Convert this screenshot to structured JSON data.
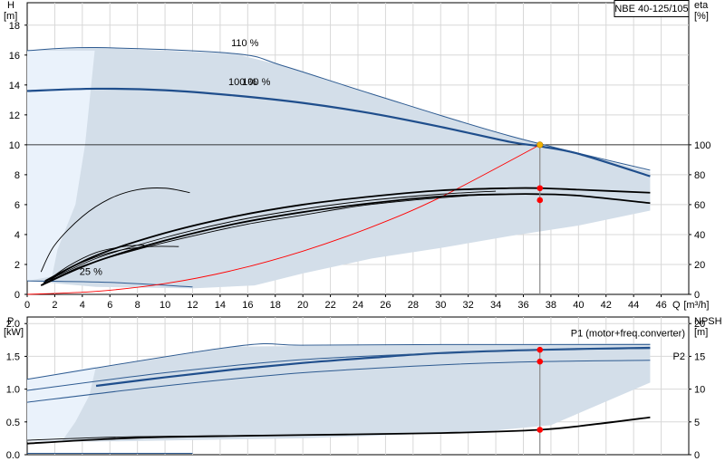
{
  "colors": {
    "envelope": "#d3dee9",
    "envelope_light": "#eaf2fb",
    "curve_blue": "#1f4e8c",
    "curve_thin_blue": "#2e5b91",
    "black": "#000000",
    "red": "#ff0000",
    "duty_point": "#f2b300"
  },
  "product_label": "NBE 40-125/105",
  "chart_data": [
    {
      "type": "line",
      "name": "head-efficiency",
      "y_left_label_top": "H",
      "y_left_label_unit": "[m]",
      "y_right_label_top": "eta",
      "y_right_label_unit": "[%]",
      "x_label_prefix": "Q",
      "x_label_unit": "[m³/h]",
      "x_ticks": [
        0,
        2,
        4,
        6,
        8,
        10,
        12,
        14,
        16,
        18,
        20,
        22,
        24,
        26,
        28,
        30,
        32,
        34,
        36,
        38,
        40,
        42,
        44,
        46
      ],
      "x_tick_labels": [
        "0",
        "2",
        "4",
        "6",
        "8",
        "10",
        "12",
        "14",
        "16",
        "18",
        "20",
        "22",
        "24",
        "26",
        "28",
        "30",
        "32",
        "34",
        "36",
        "38",
        "40",
        "42",
        "44",
        "46"
      ],
      "xlim": [
        0,
        48
      ],
      "y_left_ticks": [
        0,
        2,
        4,
        6,
        8,
        10,
        12,
        14,
        16,
        18
      ],
      "y_left_tick_labels": [
        "0",
        "2",
        "4",
        "6",
        "8",
        "10",
        "12",
        "14",
        "16",
        "18"
      ],
      "ylim_left": [
        0,
        19.5
      ],
      "y_right_ticks": [
        0,
        20,
        40,
        60,
        80,
        100
      ],
      "y_right_tick_labels": [
        "0",
        "20",
        "40",
        "60",
        "80",
        "100"
      ],
      "ylim_right": [
        0,
        195
      ],
      "annotations": [
        {
          "text": "110 %",
          "x": 14.8,
          "y": 16.6
        },
        {
          "text": "100 %",
          "x": 15.6,
          "y": 14.0
        },
        {
          "text": "100 %",
          "x": 14.6,
          "y": 14.0
        },
        {
          "text": "25 %",
          "x": 3.8,
          "y": 1.3
        }
      ],
      "envelope": {
        "upper": [
          [
            0,
            16.3
          ],
          [
            5,
            16.5
          ],
          [
            15,
            16.1
          ],
          [
            18.5,
            15.3
          ],
          [
            25,
            13.4
          ],
          [
            35,
            10.6
          ],
          [
            45.2,
            8.2
          ]
        ],
        "lower_right": [
          [
            45.2,
            8.2
          ],
          [
            45.2,
            5.6
          ],
          [
            40,
            4.6
          ],
          [
            35,
            3.9
          ],
          [
            30,
            3.1
          ],
          [
            25,
            2.4
          ],
          [
            20,
            1.4
          ],
          [
            16.5,
            0.6
          ],
          [
            12,
            0.4
          ],
          [
            5,
            0.5
          ],
          [
            0,
            0.9
          ]
        ]
      },
      "light_region": [
        [
          0,
          16.3
        ],
        [
          4.9,
          16.3
        ],
        [
          4.2,
          10
        ],
        [
          3.5,
          6
        ],
        [
          2.2,
          3
        ],
        [
          1.8,
          1.2
        ],
        [
          0,
          0.9
        ]
      ],
      "series": [
        {
          "name": "110 %",
          "style": "thin_blue",
          "x": [
            0,
            5,
            15,
            18.5,
            25,
            35,
            45.2
          ],
          "y": [
            16.3,
            16.5,
            16.1,
            15.3,
            13.4,
            10.6,
            8.3
          ]
        },
        {
          "name": "100 %",
          "style": "thick_blue",
          "x": [
            0,
            5,
            10,
            15,
            20,
            25,
            30,
            35,
            37.2,
            40,
            45.2
          ],
          "y": [
            13.6,
            13.75,
            13.65,
            13.3,
            12.8,
            12.1,
            11.2,
            10.2,
            9.9,
            9.4,
            7.9
          ]
        },
        {
          "name": "25 %",
          "style": "thin_blue",
          "x": [
            0,
            6,
            12
          ],
          "y": [
            0.9,
            0.8,
            0.5
          ]
        },
        {
          "name": "system-curve",
          "style": "red",
          "x": [
            0,
            5,
            10,
            15,
            20,
            25,
            30,
            37.2
          ],
          "y": [
            0,
            0.2,
            0.72,
            1.62,
            2.89,
            4.51,
            6.5,
            10
          ]
        },
        {
          "name": "eta-100",
          "style": "black",
          "x": [
            1,
            5,
            10,
            15,
            20,
            25,
            30,
            35,
            37.2,
            40,
            45.2
          ],
          "y": [
            0.6,
            2.2,
            3.6,
            4.7,
            5.5,
            6.1,
            6.55,
            6.7,
            6.7,
            6.6,
            6.1
          ]
        },
        {
          "name": "eta-100-b",
          "style": "black",
          "x": [
            1.3,
            5,
            10,
            15,
            20,
            25,
            30,
            35,
            37.2,
            40,
            45.2
          ],
          "y": [
            0.9,
            2.6,
            4.1,
            5.2,
            6.0,
            6.55,
            6.95,
            7.1,
            7.1,
            7.0,
            6.8
          ]
        },
        {
          "name": "eta-90",
          "style": "black_thin",
          "x": [
            1.2,
            5,
            10,
            15,
            20,
            25,
            30,
            34
          ],
          "y": [
            0.8,
            2.4,
            3.8,
            4.9,
            5.7,
            6.3,
            6.7,
            6.9
          ]
        },
        {
          "name": "eta-80",
          "style": "black_thin",
          "x": [
            1.2,
            4,
            8,
            12,
            16,
            20,
            24,
            28,
            32
          ],
          "y": [
            0.7,
            1.9,
            3.0,
            3.9,
            4.7,
            5.3,
            5.9,
            6.3,
            6.6
          ]
        },
        {
          "name": "eta-50",
          "style": "black_thin",
          "x": [
            1.1,
            3,
            5,
            7,
            9,
            11
          ],
          "y": [
            0.6,
            1.7,
            2.5,
            3.0,
            3.2,
            3.2
          ]
        },
        {
          "name": "eta-40",
          "style": "black_thin",
          "x": [
            1.0,
            3,
            5,
            7,
            8.5
          ],
          "y": [
            0.6,
            1.9,
            2.8,
            3.2,
            3.3
          ]
        },
        {
          "name": "eta-25",
          "style": "black_thin",
          "x": [
            1.0,
            2,
            4,
            6,
            8,
            10,
            11.8
          ],
          "y": [
            1.5,
            3.3,
            5.2,
            6.4,
            7.0,
            7.1,
            6.8
          ]
        }
      ],
      "duty_points": [
        {
          "x": 37.2,
          "y": 10.0,
          "color": "#f2b300"
        },
        {
          "x": 37.2,
          "y": 7.1,
          "color": "#ff0000"
        },
        {
          "x": 37.2,
          "y": 6.3,
          "color": "#ff0000"
        }
      ],
      "reference_line_y": 10
    },
    {
      "type": "line",
      "name": "power-npsh",
      "y_left_label_top": "P",
      "y_left_label_unit": "[kW]",
      "y_right_label_top": "NPSH",
      "y_right_label_unit": "[m]",
      "y_left_ticks": [
        0,
        0.5,
        1.0,
        1.5,
        2.0
      ],
      "y_left_tick_labels": [
        "0.0",
        "0.5",
        "1.0",
        "1.5",
        "2.0"
      ],
      "ylim_left": [
        0,
        2.1
      ],
      "y_right_ticks": [
        0,
        5,
        10,
        15,
        20
      ],
      "y_right_tick_labels": [
        "0",
        "5",
        "10",
        "15",
        "20"
      ],
      "ylim_right": [
        0,
        21
      ],
      "xlim": [
        0,
        48
      ],
      "annotations": [
        {
          "text": "P1 (motor+freq.converter)",
          "x": 48,
          "y": 1.8
        },
        {
          "text": "P2",
          "x": 48,
          "y": 1.45
        }
      ],
      "envelope": [
        [
          0,
          1.15
        ],
        [
          15,
          1.65
        ],
        [
          45.2,
          1.7
        ],
        [
          45.2,
          1.1
        ],
        [
          38,
          0.45
        ],
        [
          33,
          0.35
        ],
        [
          20,
          0.25
        ],
        [
          5,
          0.2
        ],
        [
          0,
          0.2
        ]
      ],
      "light_region": [
        [
          0,
          1.15
        ],
        [
          5,
          1.35
        ],
        [
          4.5,
          0.9
        ],
        [
          3.5,
          0.5
        ],
        [
          2.5,
          0.2
        ],
        [
          0,
          0.2
        ]
      ],
      "series": [
        {
          "name": "P1-110",
          "style": "thin_blue",
          "x": [
            0,
            15,
            20,
            30,
            45.2
          ],
          "y": [
            1.15,
            1.65,
            1.67,
            1.68,
            1.68
          ]
        },
        {
          "name": "P1-100",
          "style": "thick_blue",
          "x": [
            5,
            10,
            15,
            20,
            25,
            30,
            37.2,
            45.2
          ],
          "y": [
            1.05,
            1.18,
            1.3,
            1.4,
            1.48,
            1.55,
            1.6,
            1.63
          ]
        },
        {
          "name": "P1-100-b",
          "style": "thin_blue",
          "x": [
            0,
            10,
            20,
            30,
            37.2,
            45.2
          ],
          "y": [
            0.98,
            1.25,
            1.45,
            1.55,
            1.6,
            1.62
          ]
        },
        {
          "name": "P2",
          "style": "thin_blue",
          "x": [
            0,
            10,
            20,
            30,
            37.2,
            45.2
          ],
          "y": [
            0.8,
            1.05,
            1.25,
            1.37,
            1.42,
            1.44
          ]
        },
        {
          "name": "NPSH",
          "style": "black",
          "x": [
            0,
            5,
            10,
            20,
            30,
            37.2,
            41,
            45.2
          ],
          "y": [
            0.17,
            0.23,
            0.27,
            0.3,
            0.33,
            0.38,
            0.46,
            0.57
          ]
        },
        {
          "name": "NPSH-b",
          "style": "black_thin",
          "x": [
            0,
            5,
            10,
            20
          ],
          "y": [
            0.22,
            0.26,
            0.28,
            0.3
          ]
        },
        {
          "name": "P-25",
          "style": "thin_blue",
          "x": [
            0,
            12
          ],
          "y": [
            0.02,
            0.02
          ]
        }
      ],
      "duty_points": [
        {
          "x": 37.2,
          "y": 1.6,
          "color": "#ff0000"
        },
        {
          "x": 37.2,
          "y": 1.42,
          "color": "#ff0000"
        },
        {
          "x": 37.2,
          "y": 0.38,
          "color": "#ff0000"
        }
      ]
    }
  ]
}
